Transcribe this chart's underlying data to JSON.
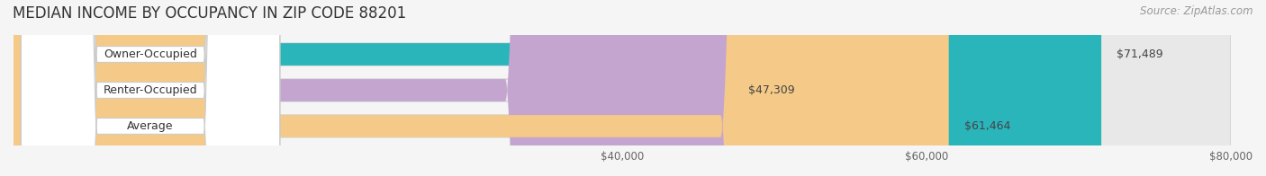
{
  "title": "MEDIAN INCOME BY OCCUPANCY IN ZIP CODE 88201",
  "source": "Source: ZipAtlas.com",
  "categories": [
    "Owner-Occupied",
    "Renter-Occupied",
    "Average"
  ],
  "values": [
    71489,
    47309,
    61464
  ],
  "bar_colors": [
    "#2ab5bb",
    "#c4a5d0",
    "#f5c987"
  ],
  "bar_edge_colors": [
    "#b0e0e2",
    "#dfc8e8",
    "#f9dfa8"
  ],
  "value_labels": [
    "$71,489",
    "$47,309",
    "$61,464"
  ],
  "xlim": [
    0,
    80000
  ],
  "xticks": [
    40000,
    60000,
    80000
  ],
  "xtick_labels": [
    "$40,000",
    "$60,000",
    "$80,000"
  ],
  "title_fontsize": 12,
  "source_fontsize": 8.5,
  "label_fontsize": 9,
  "value_fontsize": 9,
  "bg_color": "#f5f5f5",
  "bar_bg_color": "#e8e8e8"
}
